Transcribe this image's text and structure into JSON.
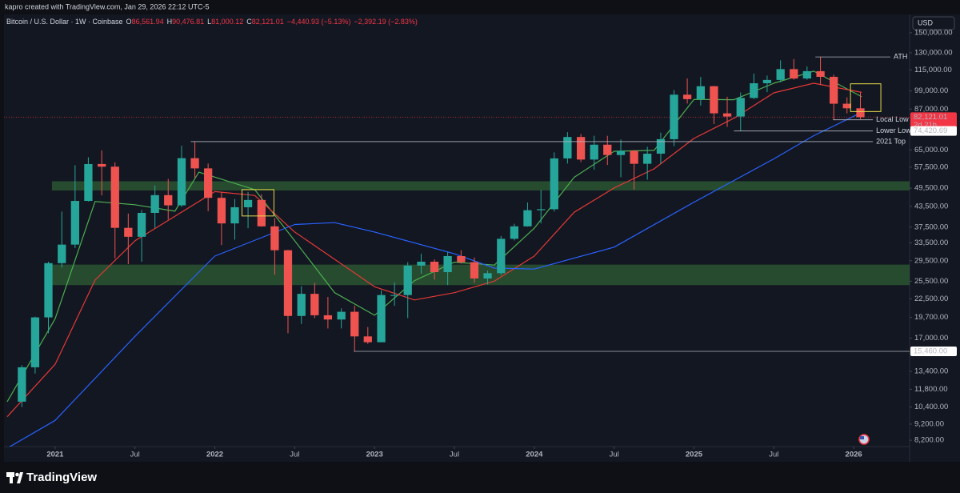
{
  "chart_data": {
    "type": "candlestick",
    "header": {
      "author_line": "kapro created with TradingView.com, Jan 29, 2026 22:12 UTC-5",
      "symbol": "Bitcoin / U.S. Dollar · 1W · Coinbase",
      "ohlc_legend": [
        {
          "key": "O",
          "value": 86561.94,
          "label": "86,561.94"
        },
        {
          "key": "H",
          "value": 90476.81,
          "label": "90,476.81"
        },
        {
          "key": "L",
          "value": 81000.12,
          "label": "81,000.12"
        },
        {
          "key": "C",
          "value": 82121.01,
          "label": "82,121.01"
        }
      ],
      "change": "−4,440.93 (−5.13%)",
      "change2": "−2,392.19 (−2.83%)"
    },
    "currency": "USD",
    "brand": "TradingView",
    "log_scale": true,
    "up_color": "#26a69a",
    "down_color": "#ef5350",
    "xlim": [
      2020.68,
      2026.35
    ],
    "xticks": [
      2021,
      {
        "value": 2021.5,
        "label": "Jul"
      },
      2022,
      {
        "value": 2022.5,
        "label": "Jul"
      },
      2023,
      {
        "value": 2023.5,
        "label": "Jul"
      },
      2024,
      {
        "value": 2024.5,
        "label": "Jul"
      },
      2025,
      {
        "value": 2025.5,
        "label": "Jul"
      },
      2026
    ],
    "ylim": [
      7840,
      170900
    ],
    "yticks": [
      {
        "value": 150000,
        "label": "150,000.00"
      },
      {
        "value": 130000,
        "label": "130,000.00"
      },
      {
        "value": 115000,
        "label": "115,000.00"
      },
      {
        "value": 99000,
        "label": "99,000.00"
      },
      {
        "value": 87000,
        "label": "87,000.00"
      },
      {
        "value": 65000,
        "label": "65,000.00"
      },
      {
        "value": 57500,
        "label": "57,500.00"
      },
      {
        "value": 49500,
        "label": "49,500.00"
      },
      {
        "value": 43500,
        "label": "43,500.00"
      },
      {
        "value": 37500,
        "label": "37,500.00"
      },
      {
        "value": 33500,
        "label": "33,500.00"
      },
      {
        "value": 29500,
        "label": "29,500.00"
      },
      {
        "value": 25500,
        "label": "25,500.00"
      },
      {
        "value": 22500,
        "label": "22,500.00"
      },
      {
        "value": 19700,
        "label": "19,700.00"
      },
      {
        "value": 17000,
        "label": "17,000.00"
      },
      {
        "value": 13400,
        "label": "13,400.00"
      },
      {
        "value": 11800,
        "label": "11,800.00"
      },
      {
        "value": 10400,
        "label": "10,400.00"
      },
      {
        "value": 9200,
        "label": "9,200.00"
      },
      {
        "value": 8200,
        "label": "8,200.00"
      }
    ],
    "x": [
      2020.792,
      2020.875,
      2020.958,
      2021.042,
      2021.125,
      2021.208,
      2021.292,
      2021.375,
      2021.458,
      2021.542,
      2021.625,
      2021.708,
      2021.792,
      2021.875,
      2021.958,
      2022.042,
      2022.125,
      2022.208,
      2022.292,
      2022.375,
      2022.458,
      2022.542,
      2022.625,
      2022.708,
      2022.792,
      2022.875,
      2022.958,
      2023.042,
      2023.125,
      2023.208,
      2023.292,
      2023.375,
      2023.458,
      2023.542,
      2023.625,
      2023.708,
      2023.792,
      2023.875,
      2023.958,
      2024.042,
      2024.125,
      2024.208,
      2024.292,
      2024.375,
      2024.458,
      2024.542,
      2024.625,
      2024.708,
      2024.792,
      2024.875,
      2024.958,
      2025.042,
      2025.125,
      2025.208,
      2025.292,
      2025.375,
      2025.458,
      2025.542,
      2025.625,
      2025.708,
      2025.792,
      2025.875,
      2025.958,
      2026.042
    ],
    "open": [
      10800,
      13800,
      19700,
      29000,
      33100,
      45200,
      58800,
      57700,
      37300,
      35000,
      41500,
      47100,
      43800,
      61300,
      57000,
      46200,
      38500,
      43200,
      45500,
      37700,
      31800,
      19900,
      23300,
      20000,
      19400,
      20500,
      17200,
      16500,
      23100,
      23100,
      28500,
      29300,
      27200,
      30500,
      29200,
      26000,
      27000,
      34500,
      37700,
      42300,
      42600,
      61200,
      71300,
      60700,
      67500,
      62700,
      64600,
      58900,
      63300,
      70200,
      96400,
      93400,
      102400,
      84400,
      82500,
      94200,
      104600,
      107100,
      115700,
      108200,
      114000,
      109500,
      90400,
      87500
    ],
    "high": [
      14000,
      19800,
      29300,
      41900,
      58300,
      61700,
      64800,
      59500,
      41300,
      42400,
      50500,
      52900,
      67000,
      69000,
      59000,
      48000,
      45800,
      48200,
      47400,
      40000,
      31900,
      24600,
      25200,
      22800,
      21000,
      21400,
      18400,
      23900,
      25300,
      29200,
      31000,
      29800,
      31400,
      31800,
      30200,
      27500,
      35200,
      38400,
      44700,
      48900,
      63900,
      73800,
      72800,
      71900,
      71900,
      70000,
      65000,
      66500,
      73600,
      99600,
      108300,
      109400,
      102700,
      95000,
      97900,
      112000,
      110500,
      123200,
      124400,
      117900,
      126200,
      111200,
      94600,
      97900
    ],
    "low": [
      10400,
      13200,
      17600,
      28100,
      32300,
      45000,
      47000,
      30000,
      28800,
      29300,
      37300,
      39600,
      43300,
      53300,
      42000,
      33000,
      34300,
      37200,
      37600,
      26700,
      17600,
      18800,
      19600,
      18200,
      18200,
      15460,
      16300,
      16500,
      21400,
      19600,
      26900,
      25800,
      24800,
      28900,
      25200,
      24900,
      26600,
      34100,
      37600,
      38500,
      41900,
      59000,
      59600,
      56500,
      58400,
      53500,
      49000,
      52600,
      58900,
      66800,
      90500,
      89200,
      78200,
      76600,
      74420.69,
      93400,
      98200,
      105300,
      107300,
      107300,
      103500,
      80600,
      84400,
      81000
    ],
    "close": [
      13800,
      19700,
      29000,
      33100,
      45200,
      58800,
      57700,
      37300,
      35000,
      41500,
      47100,
      43800,
      61300,
      57000,
      46200,
      38500,
      43200,
      45500,
      37700,
      31800,
      19900,
      23300,
      20000,
      19400,
      20500,
      17200,
      16500,
      23100,
      23100,
      28500,
      29300,
      27200,
      30500,
      29200,
      26000,
      27000,
      34500,
      37700,
      42300,
      42600,
      61200,
      71300,
      60700,
      67500,
      62700,
      64600,
      58900,
      63300,
      70200,
      96400,
      93400,
      102400,
      84400,
      82500,
      94200,
      104600,
      107100,
      115700,
      108200,
      114000,
      109500,
      90400,
      87500,
      82121.01
    ],
    "lines": [
      {
        "color": "#4caf50",
        "x": [
          2020.7,
          2021,
          2021.25,
          2021.5,
          2021.75,
          2021.9,
          2022.25,
          2022.5,
          2022.75,
          2023,
          2023.25,
          2023.5,
          2023.75,
          2024,
          2024.25,
          2024.5,
          2024.75,
          2025,
          2025.25,
          2025.5,
          2025.75,
          2026.05
        ],
        "values": [
          10800,
          19500,
          45000,
          44000,
          42000,
          55500,
          49000,
          34000,
          23500,
          20000,
          25600,
          29200,
          28600,
          37200,
          53500,
          64400,
          64800,
          93200,
          93000,
          104600,
          114000,
          95000
        ]
      },
      {
        "color": "#e53935",
        "x": [
          2020.7,
          2021,
          2021.25,
          2021.5,
          2021.75,
          2022,
          2022.25,
          2022.5,
          2022.75,
          2023,
          2023.25,
          2023.5,
          2023.75,
          2024,
          2024.25,
          2024.5,
          2024.75,
          2025,
          2025.25,
          2025.5,
          2025.75,
          2026.05
        ],
        "values": [
          9700,
          14100,
          25700,
          34000,
          40500,
          48300,
          47000,
          36200,
          29800,
          24500,
          22300,
          23500,
          25500,
          30500,
          41700,
          49600,
          56800,
          70600,
          81500,
          97700,
          104600,
          98000
        ]
      },
      {
        "color": "#2962ff",
        "x": [
          2020.7,
          2021,
          2021.5,
          2022,
          2022.5,
          2022.75,
          2023,
          2023.5,
          2023.75,
          2024,
          2024.5,
          2025,
          2025.5,
          2025.75,
          2026.05
        ],
        "values": [
          7750,
          9450,
          17200,
          30500,
          38200,
          38700,
          36200,
          31000,
          28000,
          27800,
          32500,
          44800,
          61000,
          72000,
          85000
        ]
      }
    ],
    "zones": [
      {
        "x0": 2020.98,
        "ylo": 48700,
        "yhi": 52000,
        "color": "#2e5e34"
      },
      {
        "x0": 2020.98,
        "ylo": 24800,
        "yhi": 28700,
        "color": "#2e5e34"
      }
    ],
    "boxes": [
      {
        "x0": 2022.17,
        "x1": 2022.37,
        "ylo": 40600,
        "yhi": 49000,
        "color": "#e6d84a"
      },
      {
        "x0": 2025.98,
        "x1": 2026.17,
        "ylo": 85500,
        "yhi": 104200,
        "color": "#e6d84a"
      }
    ],
    "levels": [
      {
        "label": "ATH",
        "value": 126200,
        "x0": 2025.76,
        "x1": 2026.23
      },
      {
        "label": "Local Low",
        "value": 80600,
        "x0": 2025.87,
        "x1": 2026.12
      },
      {
        "label": "Lower Low",
        "value": 74420.69,
        "x0": 2025.25,
        "x1": 2026.12
      },
      {
        "label": "2021 Top",
        "value": 69000,
        "x0": 2021.85,
        "x1": 2026.12
      },
      {
        "value": 15460,
        "x0": 2022.87,
        "x1": 2026.35
      }
    ],
    "price_tags": [
      {
        "value": 82121.01,
        "label": "82,121.01",
        "note": "2d 21h",
        "color": "#f23645"
      },
      {
        "value": 74420.69,
        "label": "74,420.69",
        "color": "#ffffff"
      },
      {
        "value": 15460,
        "label": "15,460.00",
        "color": "#ffffff"
      }
    ]
  }
}
